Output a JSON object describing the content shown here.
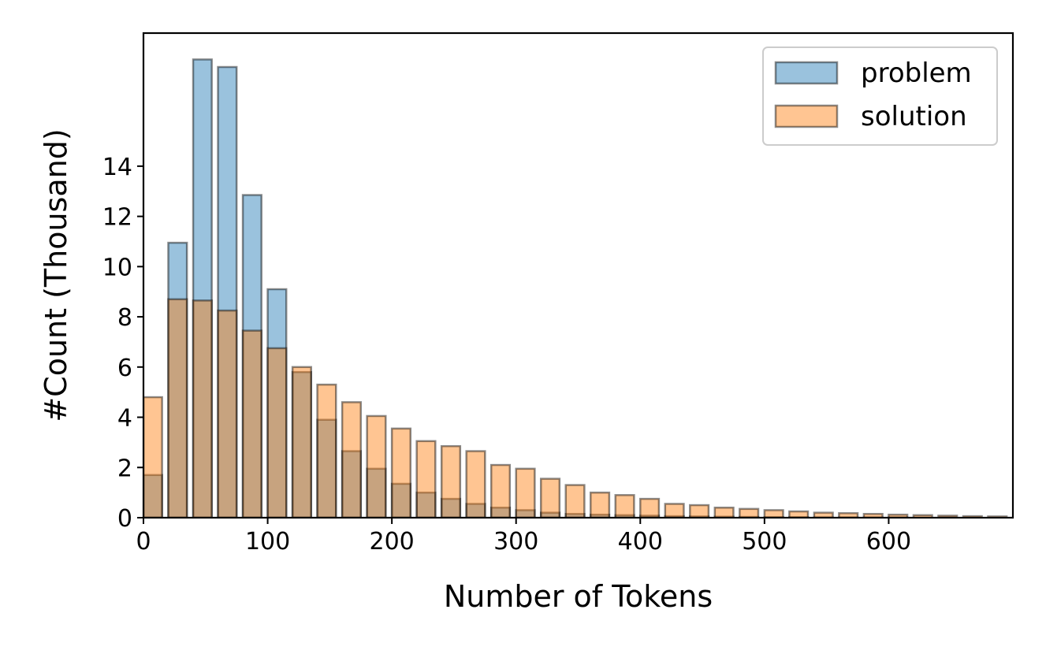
{
  "chart_data": {
    "type": "bar",
    "xlabel": "Number of Tokens",
    "ylabel": "#Count (Thousand)",
    "xlim": [
      0,
      700
    ],
    "ylim": [
      0,
      19.3
    ],
    "xticks": [
      0,
      100,
      200,
      300,
      400,
      500,
      600
    ],
    "yticks": [
      0,
      2,
      4,
      6,
      8,
      10,
      12,
      14
    ],
    "bin_width": 20,
    "bar_width": 15,
    "x": [
      0,
      20,
      40,
      60,
      80,
      100,
      120,
      140,
      160,
      180,
      200,
      220,
      240,
      260,
      280,
      300,
      320,
      340,
      360,
      380,
      400,
      420,
      440,
      460,
      480,
      500,
      520,
      540,
      560,
      580,
      600,
      620,
      640,
      660,
      680
    ],
    "grid": false,
    "legend_position": "top-right",
    "series": [
      {
        "name": "problem",
        "color": "#1f77b4",
        "values": [
          1.7,
          10.95,
          18.25,
          17.95,
          12.85,
          9.1,
          5.8,
          3.9,
          2.65,
          1.95,
          1.35,
          1.0,
          0.75,
          0.55,
          0.4,
          0.3,
          0.2,
          0.15,
          0.12,
          0.1,
          0.08,
          0.06,
          0.05,
          0.04,
          0.03,
          0.02,
          0.02,
          0.01,
          0.01,
          0.01,
          0.01,
          0.0,
          0.0,
          0.0,
          0.0
        ]
      },
      {
        "name": "solution",
        "color": "#ff7f0e",
        "values": [
          4.8,
          8.7,
          8.65,
          8.25,
          7.45,
          6.75,
          6.0,
          5.3,
          4.6,
          4.05,
          3.55,
          3.05,
          2.85,
          2.65,
          2.1,
          1.95,
          1.55,
          1.3,
          1.0,
          0.9,
          0.75,
          0.55,
          0.5,
          0.4,
          0.35,
          0.3,
          0.25,
          0.2,
          0.18,
          0.15,
          0.12,
          0.1,
          0.08,
          0.06,
          0.05
        ]
      }
    ]
  }
}
